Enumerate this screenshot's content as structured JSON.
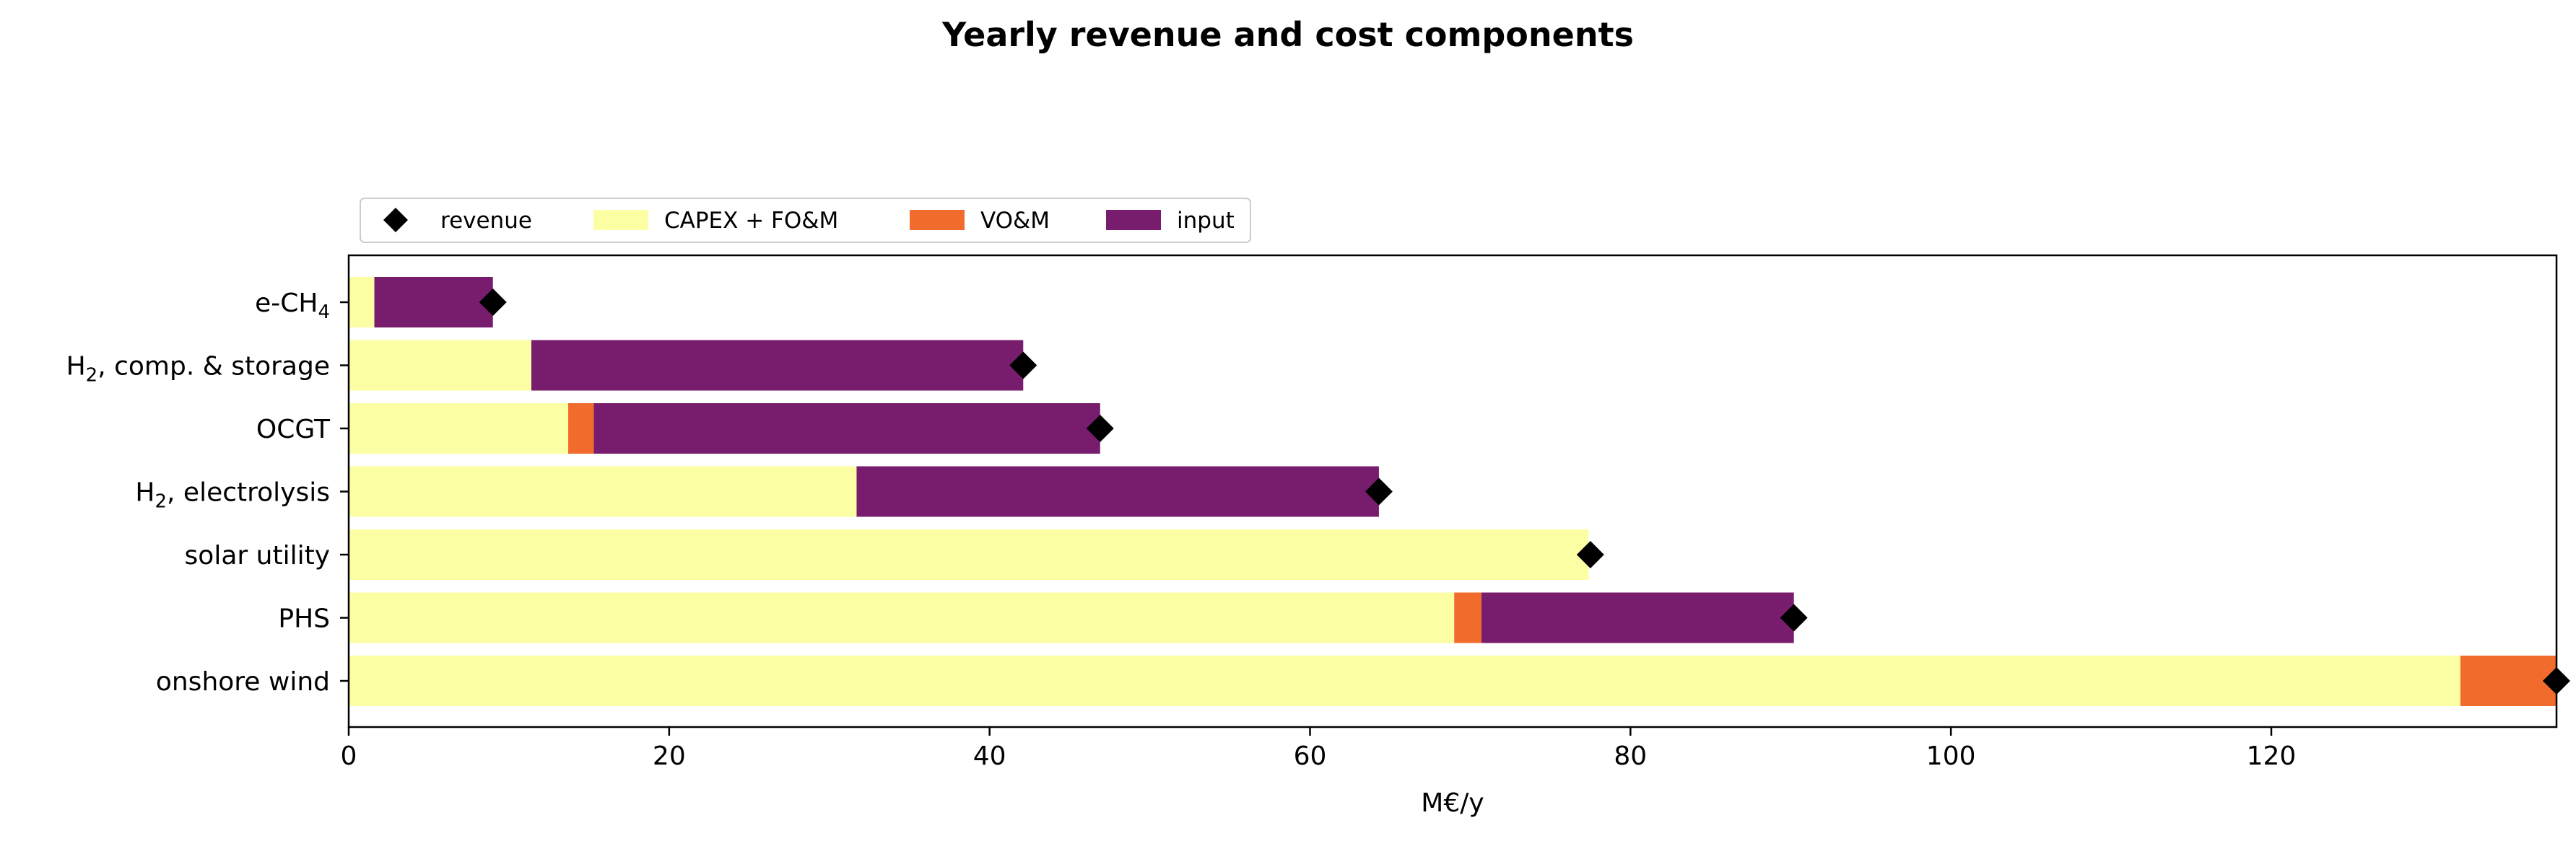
{
  "chart_data": {
    "type": "bar",
    "orientation": "horizontal",
    "stacked": true,
    "title": "Yearly revenue and cost components",
    "xlabel": "M€/y",
    "ylabel": "",
    "xlim": [
      0,
      137.8
    ],
    "xticks": [
      0,
      20,
      40,
      60,
      80,
      100,
      120
    ],
    "grid": false,
    "legend_position": "top-left, above plot",
    "categories": [
      {
        "main": "e-CH",
        "sub": "4",
        "tail": ""
      },
      {
        "main": "H",
        "sub": "2",
        "tail": ", comp. & storage"
      },
      {
        "main": "OCGT",
        "sub": "",
        "tail": ""
      },
      {
        "main": "H",
        "sub": "2",
        "tail": ", electrolysis"
      },
      {
        "main": "solar utility",
        "sub": "",
        "tail": ""
      },
      {
        "main": "PHS",
        "sub": "",
        "tail": ""
      },
      {
        "main": "onshore wind",
        "sub": "",
        "tail": ""
      }
    ],
    "series": [
      {
        "name": "CAPEX + FO&M",
        "color": "#fcfea4",
        "values": [
          1.6,
          11.4,
          13.7,
          31.7,
          77.4,
          69.0,
          131.8
        ]
      },
      {
        "name": "VO&M",
        "color": "#f06b2c",
        "values": [
          0.0,
          0.0,
          1.6,
          0.0,
          0.0,
          1.7,
          6.0
        ]
      },
      {
        "name": "input",
        "color": "#781c6d",
        "values": [
          7.4,
          30.7,
          31.6,
          32.6,
          0.0,
          19.5,
          0.0
        ]
      }
    ],
    "revenue": {
      "name": "revenue",
      "color": "#000000",
      "marker": "diamond",
      "values": [
        9.0,
        42.1,
        46.9,
        64.3,
        77.5,
        90.2,
        137.8
      ]
    }
  }
}
